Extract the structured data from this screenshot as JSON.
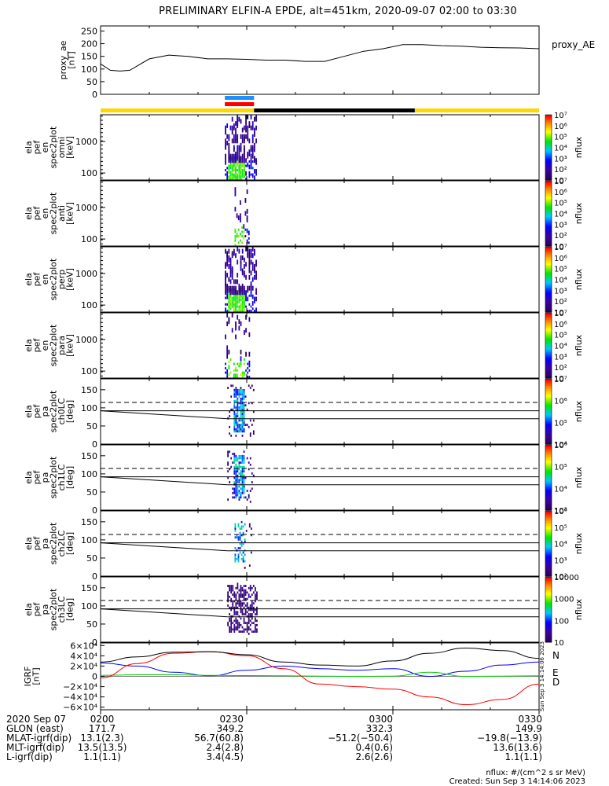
{
  "title": "PRELIMINARY ELFIN-A EPDE, alt=451km, 2020-09-07 02:00 to 03:30",
  "colors": {
    "bar_yellow": "#ffd700",
    "bar_black": "#000000",
    "bar_blue": "#1e8fff",
    "bar_red": "#ff0000",
    "igrf_n": "#0000ff",
    "igrf_e": "#00cc00",
    "igrf_d": "#ff0000",
    "igrf_total": "#000000"
  },
  "chart_data": [
    {
      "type": "line",
      "name": "proxy_ae",
      "ylabel": [
        "proxy_ae",
        "[nT]"
      ],
      "legend": "proxy_AE",
      "ylim": [
        0,
        270
      ],
      "yticks": [
        "0",
        "50",
        "100",
        "150",
        "200",
        "250"
      ],
      "x_minutes": [
        0,
        2,
        4,
        6,
        10,
        14,
        18,
        22,
        26,
        30,
        34,
        38,
        42,
        46,
        50,
        54,
        58,
        62,
        66,
        70,
        74,
        78,
        82,
        86,
        90
      ],
      "values": [
        120,
        95,
        92,
        95,
        140,
        155,
        150,
        140,
        140,
        138,
        135,
        135,
        130,
        130,
        150,
        170,
        180,
        196,
        196,
        192,
        190,
        186,
        184,
        183,
        180
      ]
    },
    {
      "type": "heatmap",
      "name": "spec2plot-omni",
      "ylabel": [
        "ela",
        "pef",
        "en",
        "spec2plot",
        "omni",
        "[keV]"
      ],
      "yscale": "log",
      "ylim_keV": [
        60,
        7000
      ],
      "yticks": [
        "100",
        "1000"
      ],
      "colorbar": {
        "label": "nflux",
        "ticks": [
          "10",
          "10²",
          "10³",
          "10⁴",
          "10⁵",
          "10⁶",
          "10⁷"
        ]
      },
      "time_span_minutes": [
        25.5,
        32.0
      ]
    },
    {
      "type": "heatmap",
      "name": "spec2plot-anti",
      "ylabel": [
        "ela",
        "pef",
        "en",
        "spec2plot",
        "anti",
        "[keV]"
      ],
      "yscale": "log",
      "ylim_keV": [
        60,
        7000
      ],
      "yticks": [
        "100",
        "1000"
      ],
      "colorbar": {
        "label": "nflux",
        "ticks": [
          "10",
          "10²",
          "10³",
          "10⁴",
          "10⁵",
          "10⁶",
          "10⁷"
        ]
      },
      "time_span_minutes": [
        27.5,
        30.5
      ]
    },
    {
      "type": "heatmap",
      "name": "spec2plot-perp",
      "ylabel": [
        "ela",
        "pef",
        "en",
        "spec2plot",
        "perp",
        "[keV]"
      ],
      "yscale": "log",
      "ylim_keV": [
        60,
        7000
      ],
      "yticks": [
        "100",
        "1000"
      ],
      "colorbar": {
        "label": "nflux",
        "ticks": [
          "10",
          "10²",
          "10³",
          "10⁴",
          "10⁵",
          "10⁶",
          "10⁷"
        ]
      },
      "time_span_minutes": [
        25.5,
        32.0
      ]
    },
    {
      "type": "heatmap",
      "name": "spec2plot-para",
      "ylabel": [
        "ela",
        "pef",
        "en",
        "spec2plot",
        "para",
        "[keV]"
      ],
      "yscale": "log",
      "ylim_keV": [
        60,
        7000
      ],
      "yticks": [
        "100",
        "1000"
      ],
      "colorbar": {
        "label": "nflux",
        "ticks": [
          "10",
          "10²",
          "10³",
          "10⁴",
          "10⁵",
          "10⁶",
          "10⁷"
        ]
      },
      "time_span_minutes": [
        25.5,
        30.5
      ]
    },
    {
      "type": "heatmap",
      "name": "spec2plot-ch0LC",
      "ylabel": [
        "ela",
        "pef",
        "pa",
        "spec2plot",
        "ch0LC",
        "[deg]"
      ],
      "ylim": [
        0,
        180
      ],
      "yticks": [
        "0",
        "50",
        "100",
        "150"
      ],
      "colorbar": {
        "label": "nflux",
        "ticks": [
          "10⁴",
          "10⁵",
          "10⁶",
          "10⁷"
        ]
      },
      "loss_cone_deg": [
        92,
        68
      ],
      "loss_cone_end_deg": [
        65,
        115
      ],
      "time_span_minutes": [
        26.0,
        31.5
      ]
    },
    {
      "type": "heatmap",
      "name": "spec2plot-ch1LC",
      "ylabel": [
        "ela",
        "pef",
        "pa",
        "spec2plot",
        "ch1LC",
        "[deg]"
      ],
      "ylim": [
        0,
        180
      ],
      "yticks": [
        "0",
        "50",
        "100",
        "150"
      ],
      "colorbar": {
        "label": "nflux",
        "ticks": [
          "10³",
          "10⁴",
          "10⁵",
          "10⁶"
        ]
      },
      "loss_cone_deg": [
        92,
        68
      ],
      "loss_cone_end_deg": [
        65,
        115
      ],
      "time_span_minutes": [
        26.0,
        31.5
      ]
    },
    {
      "type": "heatmap",
      "name": "spec2plot-ch2LC",
      "ylabel": [
        "ela",
        "pef",
        "pa",
        "spec2plot",
        "ch2LC",
        "[deg]"
      ],
      "ylim": [
        0,
        180
      ],
      "yticks": [
        "0",
        "50",
        "100",
        "150"
      ],
      "colorbar": {
        "label": "nflux",
        "ticks": [
          "10²",
          "10³",
          "10⁴",
          "10⁵",
          "10⁶"
        ]
      },
      "loss_cone_deg": [
        92,
        68
      ],
      "loss_cone_end_deg": [
        65,
        115
      ],
      "time_span_minutes": [
        27.5,
        31.0
      ]
    },
    {
      "type": "heatmap",
      "name": "spec2plot-ch3LC",
      "ylabel": [
        "ela",
        "pef",
        "pa",
        "spec2plot",
        "ch3LC",
        "[deg]"
      ],
      "ylim": [
        0,
        180
      ],
      "yticks": [
        "0",
        "50",
        "100",
        "150"
      ],
      "colorbar": {
        "label": "nflux",
        "ticks": [
          "10",
          "100",
          "1000",
          "10000"
        ]
      },
      "loss_cone_deg": [
        92,
        68
      ],
      "loss_cone_end_deg": [
        65,
        115
      ],
      "time_span_minutes": [
        26.0,
        32.0
      ]
    },
    {
      "type": "line",
      "name": "IGRF",
      "ylabel": [
        "IGRF",
        "[nT]"
      ],
      "ylim": [
        -65000,
        65000
      ],
      "yticks": [
        "−6×10⁴",
        "−4×10⁴",
        "−2×10⁴",
        "0",
        "2×10⁴",
        "4×10⁴",
        "6×10⁴"
      ],
      "legend": [
        "N",
        "E",
        "D"
      ],
      "side_text": "Sun Sep  3 14:14:06 2023",
      "x_minutes": [
        0,
        7.5,
        15,
        22.5,
        30,
        37.5,
        45,
        52.5,
        60,
        67.5,
        75,
        82.5,
        90
      ],
      "series": [
        {
          "name": "N",
          "values": [
            26000,
            20000,
            8000,
            1000,
            12000,
            20000,
            15000,
            12000,
            15000,
            0,
            10000,
            22000,
            28000
          ]
        },
        {
          "name": "E",
          "values": [
            2000,
            3000,
            3000,
            2000,
            1500,
            1000,
            500,
            0,
            500,
            8000,
            0,
            500,
            1000
          ]
        },
        {
          "name": "D",
          "values": [
            -3000,
            25000,
            45000,
            48000,
            40000,
            15000,
            -15000,
            -20000,
            -25000,
            -40000,
            -55000,
            -45000,
            -15000
          ]
        },
        {
          "name": "total",
          "values": [
            28000,
            38000,
            47000,
            48000,
            42000,
            28000,
            22000,
            20000,
            30000,
            45000,
            55000,
            50000,
            35000
          ]
        }
      ]
    }
  ],
  "xaxis": {
    "ticks": [
      "0200",
      "0230",
      "0300",
      "0330"
    ],
    "tick_minutes": [
      0,
      30,
      60,
      90
    ],
    "span_minutes": [
      0,
      90
    ]
  },
  "orbit_bars": {
    "main": [
      {
        "from": 0,
        "to": 31.5,
        "color": "yellow"
      },
      {
        "from": 31.5,
        "to": 64.5,
        "color": "black"
      },
      {
        "from": 64.5,
        "to": 90,
        "color": "yellow"
      }
    ],
    "blue": {
      "from": 25.5,
      "to": 31.5
    },
    "red": {
      "from": 25.5,
      "to": 31.5
    }
  },
  "footer": {
    "rows": [
      {
        "label": "2020 Sep 07",
        "values": [
          "0200",
          "0230",
          "0300",
          "0330"
        ]
      },
      {
        "label": "GLON (east)",
        "values": [
          "171.7",
          "349.2",
          "332.3",
          "149.9"
        ]
      },
      {
        "label": "MLAT-igrf(dip)",
        "values": [
          "13.1(2.3)",
          "56.7(60.8)",
          "−51.2(−50.4)",
          "−19.8(−13.9)"
        ]
      },
      {
        "label": "MLT-igrf(dip)",
        "values": [
          "13.5(13.5)",
          "2.4(2.8)",
          "0.4(0.6)",
          "13.6(13.6)"
        ]
      },
      {
        "label": "L-igrf(dip)",
        "values": [
          "1.1(1.1)",
          "3.4(4.5)",
          "2.6(2.6)",
          "1.1(1.1)"
        ]
      }
    ],
    "units_note": "nflux: #/(cm^2 s sr MeV)",
    "created": "Created: Sun Sep  3 14:14:06 2023"
  }
}
